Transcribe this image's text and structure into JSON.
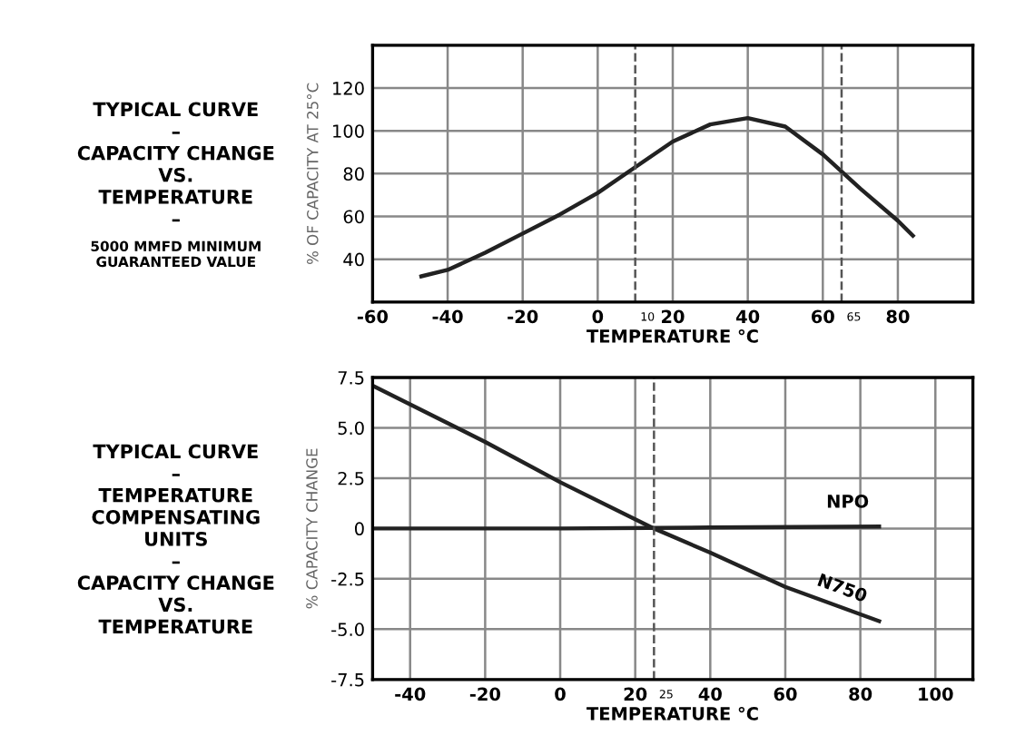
{
  "chart_data": [
    {
      "type": "line",
      "title": "TYPICAL CURVE",
      "subtitle": "–\nCAPACITY CHANGE\nVS.\nTEMPERATURE\n–",
      "annotations": [
        "5000 MMFD MINIMUM\nGUARANTEED VALUE"
      ],
      "xlabel": "TEMPERATURE °C",
      "ylabel": "% OF CAPACITY AT 25°C",
      "xlim": [
        -60,
        100
      ],
      "xticks": [
        -60,
        -40,
        -20,
        0,
        20,
        40,
        60,
        80,
        {
          "value": 100,
          "label": null
        }
      ],
      "ylim": [
        20,
        140
      ],
      "yticks": [
        {
          "value": 20,
          "label": null
        },
        40,
        60,
        80,
        100,
        120,
        {
          "value": 140,
          "label": null
        }
      ],
      "grid": true,
      "legend": false,
      "marker": "none",
      "line_style": "solid",
      "ref_lines": [
        {
          "axis": "x",
          "value": 10,
          "label": "10",
          "line_style": "dashed"
        },
        {
          "axis": "x",
          "value": 65,
          "label": "65",
          "line_style": "dashed"
        }
      ],
      "series": [
        {
          "color": "#222222",
          "x": [
            -47,
            -40,
            -30,
            -20,
            -10,
            0,
            10,
            20,
            30,
            40,
            50,
            60,
            70,
            80,
            84
          ],
          "values": [
            32,
            35,
            43,
            52,
            61,
            71,
            83,
            95,
            103,
            106,
            102,
            89,
            73,
            58,
            51
          ]
        }
      ]
    },
    {
      "type": "line",
      "title": "TYPICAL CURVE",
      "subtitle": "–\nTEMPERATURE\nCOMPENSATING\nUNITS\n–\nCAPACITY CHANGE\nVS.\nTEMPERATURE",
      "xlabel": "TEMPERATURE °C",
      "ylabel": "% CAPACITY CHANGE",
      "xlim": [
        -50,
        110
      ],
      "xticks": [
        -40,
        -20,
        0,
        20,
        40,
        60,
        80,
        100
      ],
      "ylim": [
        -7.5,
        7.5
      ],
      "yticks": [
        {
          "value": -7.5,
          "label": "-7.5"
        },
        {
          "value": -5,
          "label": "-5.0"
        },
        {
          "value": -2.5,
          "label": "-2.5"
        },
        0,
        2.5,
        {
          "value": 5,
          "label": "5.0"
        },
        7.5
      ],
      "grid": true,
      "legend": false,
      "marker": "none",
      "line_style": "solid",
      "ref_lines": [
        {
          "axis": "x",
          "value": 25,
          "label": "25",
          "line_style": "dashed"
        }
      ],
      "series": [
        {
          "name": "NPO",
          "color": "#222222",
          "x": [
            -50,
            0,
            40,
            85
          ],
          "values": [
            0,
            0,
            0.05,
            0.1
          ]
        },
        {
          "name": "N750",
          "color": "#222222",
          "x": [
            -50,
            -20,
            0,
            25,
            40,
            60,
            85
          ],
          "values": [
            7.1,
            4.3,
            2.3,
            0,
            -1.2,
            -2.9,
            -4.6
          ]
        }
      ]
    }
  ]
}
